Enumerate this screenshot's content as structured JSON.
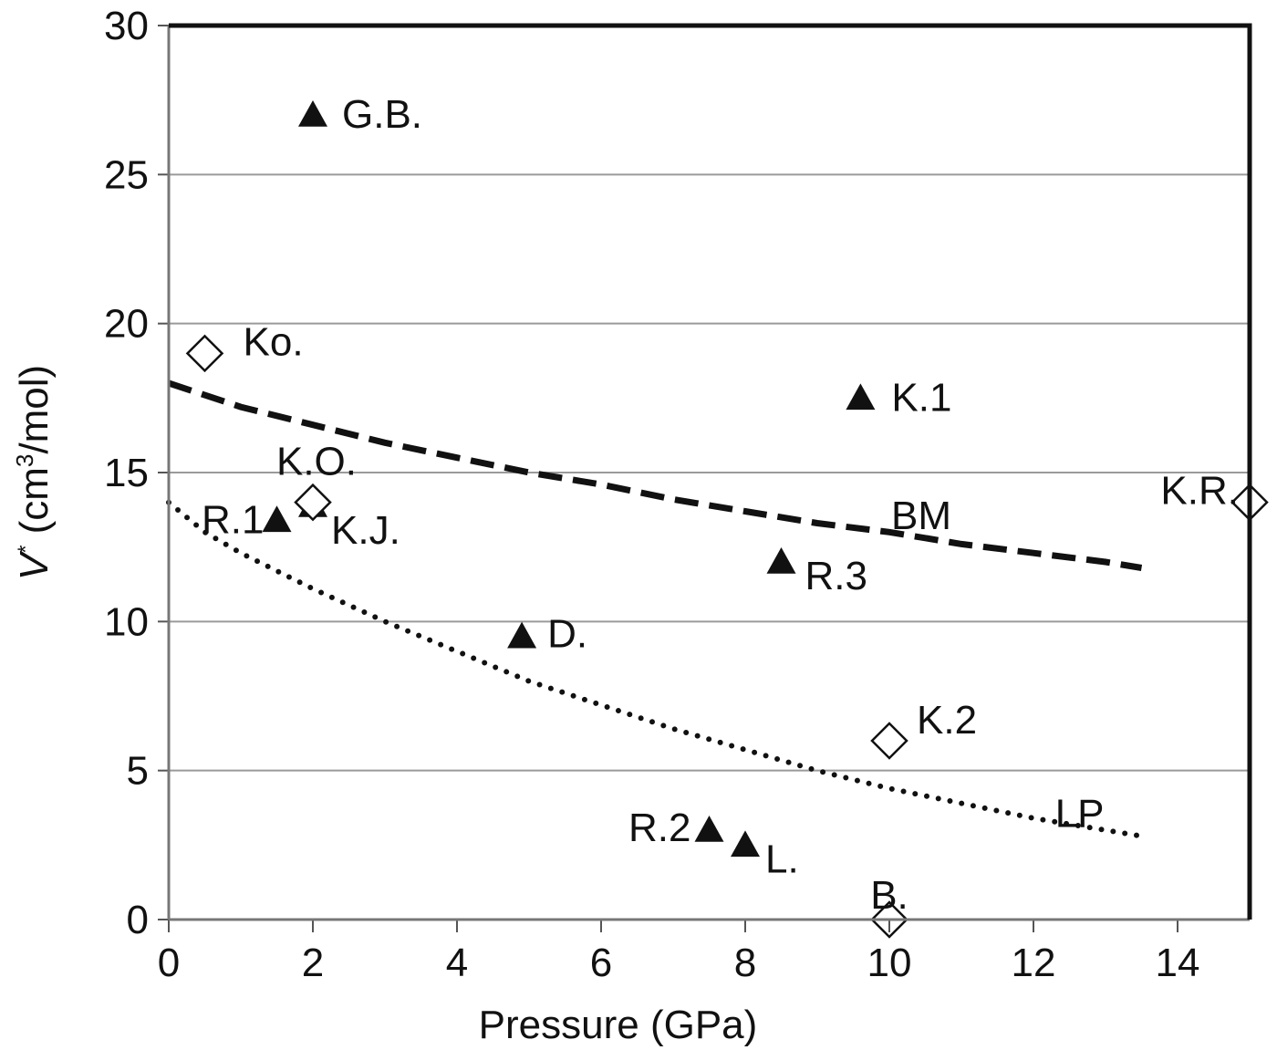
{
  "chart_data": {
    "type": "scatter",
    "xlabel": "Pressure (GPa)",
    "ylabel_main": "V",
    "ylabel_sup_star": "*",
    "ylabel_unit_prefix": "(cm",
    "ylabel_unit_sup": "3",
    "ylabel_unit_suffix": "/mol)",
    "xlim": [
      0,
      15
    ],
    "ylim": [
      0,
      30
    ],
    "x_ticks": [
      "0",
      "2",
      "4",
      "6",
      "8",
      "10",
      "12",
      "14"
    ],
    "x_tick_values": [
      0,
      2,
      4,
      6,
      8,
      10,
      12,
      14
    ],
    "y_ticks": [
      "0",
      "5",
      "10",
      "15",
      "20",
      "25",
      "30"
    ],
    "y_tick_values": [
      0,
      5,
      10,
      15,
      20,
      25,
      30
    ],
    "grid": "horizontal",
    "triangle_points": [
      {
        "label": "G.B.",
        "x": 2.0,
        "y": 27.0
      },
      {
        "label": "K.1",
        "x": 9.6,
        "y": 17.5
      },
      {
        "label": "R.1",
        "x": 1.5,
        "y": 13.4
      },
      {
        "label": "K.J.",
        "x": 2.0,
        "y": 13.9
      },
      {
        "label": "R.3",
        "x": 8.5,
        "y": 12.0
      },
      {
        "label": "D.",
        "x": 4.9,
        "y": 9.5
      },
      {
        "label": "R.2",
        "x": 7.5,
        "y": 3.0
      },
      {
        "label": "L.",
        "x": 8.0,
        "y": 2.5
      }
    ],
    "diamond_points": [
      {
        "label": "Ko.",
        "x": 0.5,
        "y": 19.0
      },
      {
        "label": "K.O.",
        "x": 2.0,
        "y": 14.0
      },
      {
        "label": "K.R.",
        "x": 15.0,
        "y": 14.0
      },
      {
        "label": "K.2",
        "x": 10.0,
        "y": 6.0
      },
      {
        "label": "B.",
        "x": 10.0,
        "y": 0.0
      }
    ],
    "curves": [
      {
        "label": "BM",
        "style": "dashed",
        "x": [
          0,
          1,
          2,
          3,
          4,
          5,
          6,
          7,
          8,
          9,
          10,
          11,
          12,
          13,
          13.5
        ],
        "y": [
          18.0,
          17.2,
          16.6,
          16.0,
          15.5,
          15.0,
          14.6,
          14.1,
          13.7,
          13.3,
          13.0,
          12.6,
          12.3,
          12.0,
          11.8
        ]
      },
      {
        "label": "LP",
        "style": "dotted",
        "x": [
          0,
          0.5,
          1,
          1.5,
          2,
          3,
          4,
          5,
          6,
          7,
          8,
          9,
          10,
          11,
          12,
          13,
          13.5
        ],
        "y": [
          14.0,
          13.0,
          12.3,
          11.7,
          11.1,
          10.0,
          9.0,
          8.0,
          7.2,
          6.4,
          5.7,
          5.0,
          4.4,
          3.9,
          3.4,
          3.0,
          2.8
        ]
      }
    ]
  }
}
